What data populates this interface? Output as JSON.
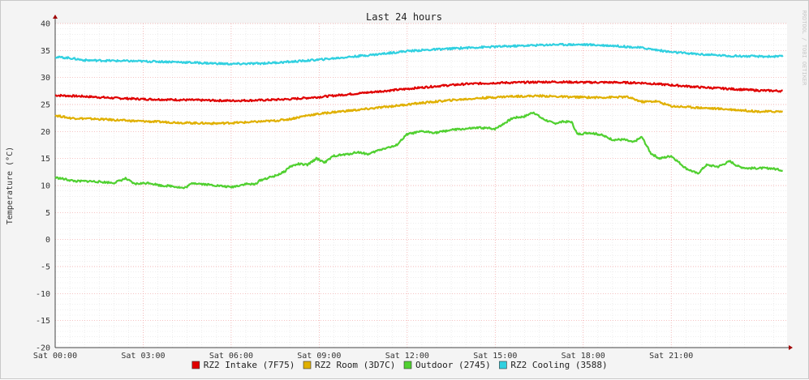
{
  "chart_data": {
    "type": "line",
    "title": "Last 24 hours",
    "ylabel": "Temperature (°C)",
    "watermark": "RRDTOOL / TOBI OETIKER",
    "ylim": [
      -20,
      40
    ],
    "yticks": [
      40,
      35,
      30,
      25,
      20,
      15,
      10,
      5,
      0,
      -5,
      -10,
      -15,
      -20
    ],
    "xlim": [
      0,
      24.95
    ],
    "xticks": [
      {
        "hour": 0,
        "label": "Sat 00:00"
      },
      {
        "hour": 3,
        "label": "Sat 03:00"
      },
      {
        "hour": 6,
        "label": "Sat 06:00"
      },
      {
        "hour": 9,
        "label": "Sat 09:00"
      },
      {
        "hour": 12,
        "label": "Sat 12:00"
      },
      {
        "hour": 15,
        "label": "Sat 15:00"
      },
      {
        "hour": 18,
        "label": "Sat 18:00"
      },
      {
        "hour": 21,
        "label": "Sat 21:00"
      }
    ],
    "grid": true,
    "legend": "bottom",
    "series": [
      {
        "name": "RZ2 Intake (7F75)",
        "color": "#e00000",
        "points": [
          [
            0,
            26.7
          ],
          [
            1,
            26.5
          ],
          [
            2,
            26.2
          ],
          [
            3,
            26.0
          ],
          [
            4,
            25.9
          ],
          [
            5,
            25.8
          ],
          [
            6,
            25.7
          ],
          [
            7,
            25.8
          ],
          [
            8,
            26.0
          ],
          [
            9,
            26.4
          ],
          [
            10,
            26.9
          ],
          [
            11,
            27.4
          ],
          [
            12,
            27.9
          ],
          [
            13,
            28.4
          ],
          [
            14,
            28.8
          ],
          [
            15,
            29.0
          ],
          [
            16,
            29.1
          ],
          [
            17,
            29.2
          ],
          [
            18,
            29.1
          ],
          [
            19,
            29.1
          ],
          [
            20,
            29.0
          ],
          [
            21,
            28.6
          ],
          [
            22,
            28.2
          ],
          [
            23,
            27.9
          ],
          [
            24,
            27.6
          ],
          [
            24.8,
            27.5
          ]
        ]
      },
      {
        "name": "RZ2 Room (3D7C)",
        "color": "#e0b000",
        "points": [
          [
            0,
            23.0
          ],
          [
            0.5,
            22.5
          ],
          [
            1.5,
            22.3
          ],
          [
            2.5,
            22.0
          ],
          [
            3.5,
            21.8
          ],
          [
            4.5,
            21.6
          ],
          [
            5.5,
            21.5
          ],
          [
            6.5,
            21.7
          ],
          [
            7.5,
            22.0
          ],
          [
            8,
            22.3
          ],
          [
            8.6,
            23.0
          ],
          [
            9.5,
            23.6
          ],
          [
            10.5,
            24.1
          ],
          [
            11.5,
            24.7
          ],
          [
            12.5,
            25.3
          ],
          [
            13.5,
            25.8
          ],
          [
            14.5,
            26.2
          ],
          [
            15.5,
            26.5
          ],
          [
            16.5,
            26.6
          ],
          [
            17.5,
            26.4
          ],
          [
            18.5,
            26.3
          ],
          [
            19.5,
            26.4
          ],
          [
            20,
            25.5
          ],
          [
            20.5,
            25.6
          ],
          [
            21,
            24.7
          ],
          [
            22,
            24.4
          ],
          [
            23,
            24.1
          ],
          [
            24,
            23.7
          ],
          [
            24.8,
            23.7
          ]
        ]
      },
      {
        "name": "Outdoor (2745)",
        "color": "#50d030",
        "points": [
          [
            0,
            11.5
          ],
          [
            0.7,
            10.8
          ],
          [
            1.2,
            10.8
          ],
          [
            2,
            10.5
          ],
          [
            2.4,
            11.3
          ],
          [
            2.7,
            10.3
          ],
          [
            3.2,
            10.5
          ],
          [
            3.6,
            10.0
          ],
          [
            4.0,
            9.9
          ],
          [
            4.4,
            9.5
          ],
          [
            4.7,
            10.5
          ],
          [
            5.0,
            10.3
          ],
          [
            5.5,
            10.0
          ],
          [
            6.0,
            9.7
          ],
          [
            6.5,
            10.3
          ],
          [
            6.8,
            10.2
          ],
          [
            7.0,
            11.0
          ],
          [
            7.5,
            11.8
          ],
          [
            7.8,
            12.5
          ],
          [
            8.0,
            13.5
          ],
          [
            8.3,
            14.0
          ],
          [
            8.6,
            13.8
          ],
          [
            8.9,
            15.0
          ],
          [
            9.2,
            14.3
          ],
          [
            9.5,
            15.5
          ],
          [
            10.0,
            15.8
          ],
          [
            10.3,
            16.2
          ],
          [
            10.7,
            15.8
          ],
          [
            11.0,
            16.5
          ],
          [
            11.3,
            17.0
          ],
          [
            11.6,
            17.3
          ],
          [
            12.0,
            19.5
          ],
          [
            12.5,
            20.0
          ],
          [
            13.0,
            19.8
          ],
          [
            13.5,
            20.3
          ],
          [
            14.0,
            20.5
          ],
          [
            14.5,
            20.7
          ],
          [
            15.0,
            20.5
          ],
          [
            15.3,
            21.5
          ],
          [
            15.6,
            22.5
          ],
          [
            16.0,
            22.8
          ],
          [
            16.3,
            23.6
          ],
          [
            16.6,
            22.4
          ],
          [
            17.0,
            21.5
          ],
          [
            17.3,
            21.8
          ],
          [
            17.6,
            21.8
          ],
          [
            17.8,
            19.5
          ],
          [
            18.2,
            19.8
          ],
          [
            18.6,
            19.4
          ],
          [
            19.0,
            18.5
          ],
          [
            19.4,
            18.5
          ],
          [
            19.7,
            18.0
          ],
          [
            20.0,
            19.0
          ],
          [
            20.3,
            16.0
          ],
          [
            20.6,
            15.0
          ],
          [
            21.0,
            15.5
          ],
          [
            21.5,
            13.2
          ],
          [
            21.9,
            12.2
          ],
          [
            22.2,
            13.8
          ],
          [
            22.6,
            13.5
          ],
          [
            23.0,
            14.5
          ],
          [
            23.3,
            13.5
          ],
          [
            23.6,
            13.2
          ],
          [
            24.0,
            13.2
          ],
          [
            24.4,
            13.2
          ],
          [
            24.8,
            12.8
          ]
        ]
      },
      {
        "name": "RZ2 Cooling (3588)",
        "color": "#30d0e0",
        "points": [
          [
            0,
            33.8
          ],
          [
            0.5,
            33.6
          ],
          [
            1,
            33.2
          ],
          [
            2,
            33.1
          ],
          [
            3,
            33.0
          ],
          [
            4,
            32.9
          ],
          [
            5,
            32.7
          ],
          [
            6,
            32.5
          ],
          [
            7,
            32.6
          ],
          [
            8,
            32.9
          ],
          [
            9,
            33.3
          ],
          [
            10,
            33.8
          ],
          [
            11,
            34.3
          ],
          [
            12,
            34.9
          ],
          [
            13,
            35.2
          ],
          [
            14,
            35.5
          ],
          [
            15,
            35.7
          ],
          [
            16,
            35.9
          ],
          [
            17,
            36.1
          ],
          [
            18,
            36.1
          ],
          [
            19,
            35.9
          ],
          [
            20,
            35.5
          ],
          [
            21,
            34.7
          ],
          [
            22,
            34.3
          ],
          [
            23,
            34.0
          ],
          [
            24,
            33.9
          ],
          [
            24.8,
            33.9
          ]
        ]
      }
    ]
  }
}
